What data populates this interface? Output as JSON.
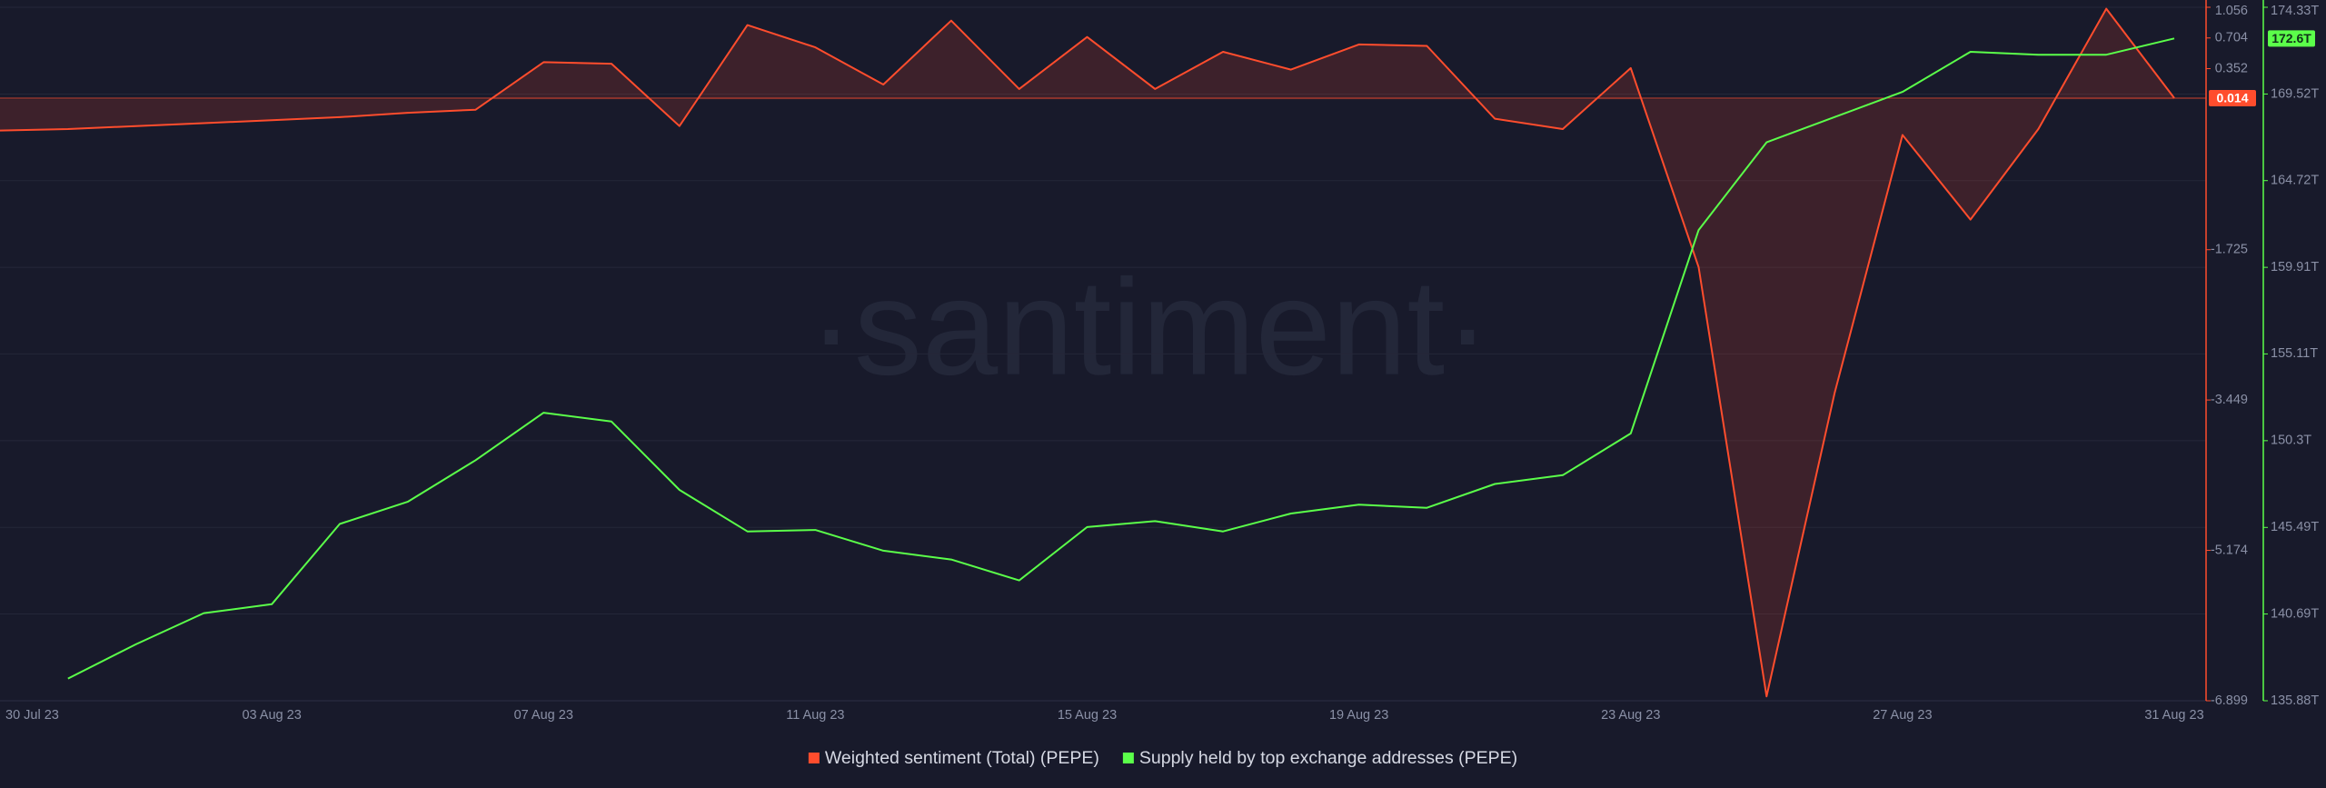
{
  "chart_data": {
    "type": "line",
    "watermark": "·santiment·",
    "x": [
      "30 Jul 23",
      "31 Jul 23",
      "01 Aug 23",
      "02 Aug 23",
      "03 Aug 23",
      "04 Aug 23",
      "05 Aug 23",
      "06 Aug 23",
      "07 Aug 23",
      "08 Aug 23",
      "09 Aug 23",
      "10 Aug 23",
      "11 Aug 23",
      "12 Aug 23",
      "13 Aug 23",
      "14 Aug 23",
      "15 Aug 23",
      "16 Aug 23",
      "17 Aug 23",
      "18 Aug 23",
      "19 Aug 23",
      "20 Aug 23",
      "21 Aug 23",
      "22 Aug 23",
      "23 Aug 23",
      "24 Aug 23",
      "25 Aug 23",
      "26 Aug 23",
      "27 Aug 23",
      "28 Aug 23",
      "29 Aug 23",
      "30 Aug 23",
      "31 Aug 23"
    ],
    "xticks": [
      "30 Jul 23",
      "03 Aug 23",
      "07 Aug 23",
      "11 Aug 23",
      "15 Aug 23",
      "19 Aug 23",
      "23 Aug 23",
      "27 Aug 23",
      "31 Aug 23"
    ],
    "ylim": [
      -6.899,
      1.056
    ],
    "yticks": [
      1.056,
      0.704,
      0.352,
      -1.725,
      -3.449,
      -5.174,
      -6.899
    ],
    "y2lim": [
      135.88,
      174.33
    ],
    "y2ticks": [
      {
        "value": 174.33,
        "label": "174.33T"
      },
      {
        "value": 169.52,
        "label": "169.52T"
      },
      {
        "value": 164.72,
        "label": "164.72T"
      },
      {
        "value": 159.91,
        "label": "159.91T"
      },
      {
        "value": 155.11,
        "label": "155.11T"
      },
      {
        "value": 150.3,
        "label": "150.3T"
      },
      {
        "value": 145.49,
        "label": "145.49T"
      },
      {
        "value": 140.69,
        "label": "140.69T"
      },
      {
        "value": 135.88,
        "label": "135.88T"
      }
    ],
    "grid": true,
    "series": [
      {
        "name": "Weighted sentiment (Total) (PEPE)",
        "color": "#ff4d2d",
        "fill": true,
        "values": [
          -0.358,
          -0.341,
          -0.307,
          -0.273,
          -0.239,
          -0.205,
          -0.154,
          -0.119,
          0.426,
          0.409,
          -0.307,
          0.852,
          0.596,
          0.17,
          0.903,
          0.119,
          0.715,
          0.119,
          0.545,
          0.341,
          0.63,
          0.613,
          -0.222,
          -0.341,
          0.358,
          -1.925,
          -6.849,
          -3.373,
          -0.409,
          -1.38,
          -0.341,
          1.039,
          0.014
        ]
      },
      {
        "name": "Supply held by top exchange addresses (PEPE)",
        "color": "#5bff4a",
        "axis": "y2",
        "values": [
          null,
          137.11,
          139.01,
          140.74,
          141.23,
          145.68,
          146.91,
          149.22,
          151.85,
          151.36,
          147.57,
          145.27,
          145.35,
          144.2,
          143.71,
          142.55,
          145.51,
          145.84,
          145.27,
          146.26,
          146.75,
          146.58,
          147.9,
          148.39,
          150.7,
          161.98,
          166.84,
          168.24,
          169.64,
          171.86,
          171.7,
          171.7,
          172.6
        ],
        "value_labels": [
          null,
          null,
          null,
          null,
          null,
          null,
          null,
          null,
          null,
          null,
          null,
          null,
          null,
          null,
          null,
          null,
          null,
          null,
          null,
          null,
          null,
          null,
          null,
          null,
          null,
          null,
          null,
          null,
          null,
          null,
          null,
          null,
          "172.6T"
        ]
      }
    ]
  }
}
